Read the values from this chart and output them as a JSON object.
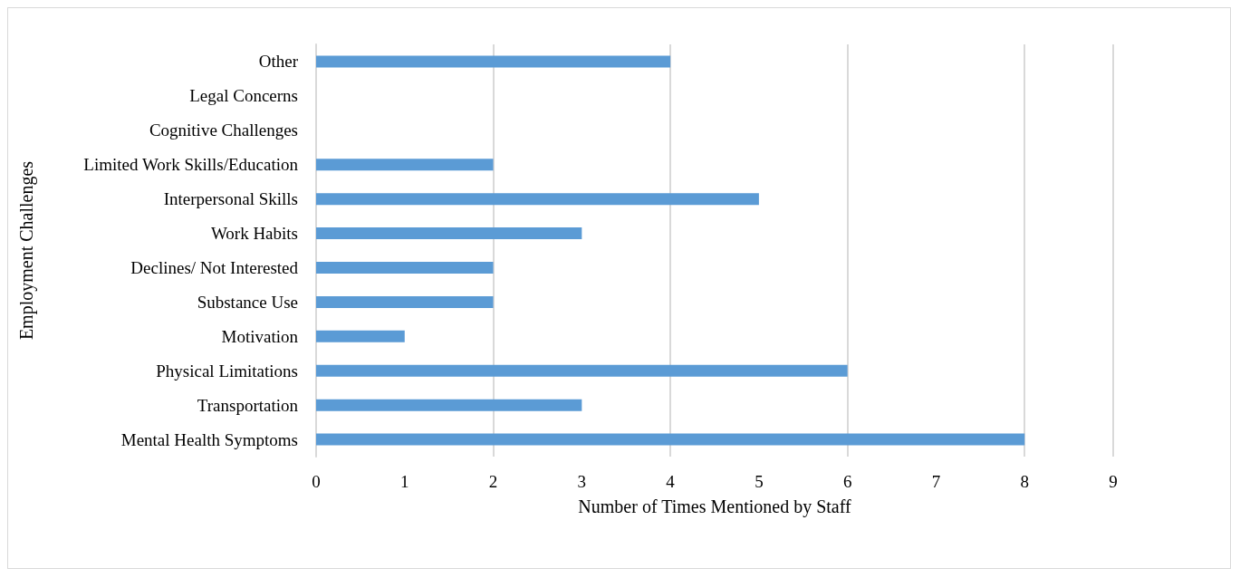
{
  "chart_data": {
    "type": "bar",
    "orientation": "horizontal",
    "xlabel": "Number of Times Mentioned by Staff",
    "ylabel": "Employment Challenges",
    "categories": [
      "Other",
      "Legal Concerns",
      "Cognitive Challenges",
      "Limited Work Skills/Education",
      "Interpersonal Skills",
      "Work Habits",
      "Declines/ Not Interested",
      "Substance Use",
      "Motivation",
      "Physical Limitations",
      "Transportation",
      "Mental Health Symptoms"
    ],
    "values": [
      4,
      0,
      0,
      2,
      5,
      3,
      2,
      2,
      1,
      6,
      3,
      8
    ],
    "color": "#5b9bd5",
    "xlim": [
      0,
      9
    ],
    "xticks": [
      0,
      1,
      2,
      3,
      4,
      5,
      6,
      7,
      8,
      9
    ],
    "grid": "x"
  }
}
